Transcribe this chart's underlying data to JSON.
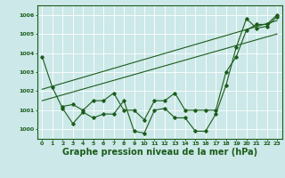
{
  "background_color": "#cce8e8",
  "grid_color": "#ffffff",
  "line_color": "#1a5c1a",
  "xlabel": "Graphe pression niveau de la mer (hPa)",
  "xlabel_fontsize": 7,
  "ylim": [
    999.5,
    1006.5
  ],
  "xlim": [
    -0.5,
    23.5
  ],
  "yticks": [
    1000,
    1001,
    1002,
    1003,
    1004,
    1005,
    1006
  ],
  "xticks": [
    0,
    1,
    2,
    3,
    4,
    5,
    6,
    7,
    8,
    9,
    10,
    11,
    12,
    13,
    14,
    15,
    16,
    17,
    18,
    19,
    20,
    21,
    22,
    23
  ],
  "series1": {
    "x": [
      0,
      1,
      2,
      3,
      4,
      5,
      6,
      7,
      8,
      9,
      10,
      11,
      12,
      13,
      14,
      15,
      16,
      17,
      18,
      19,
      20,
      21,
      22,
      23
    ],
    "y": [
      1003.8,
      1002.2,
      1001.1,
      1000.3,
      1000.9,
      1000.6,
      1000.8,
      1000.8,
      1001.5,
      999.9,
      999.8,
      1001.0,
      1001.1,
      1000.6,
      1000.6,
      999.9,
      999.9,
      1000.8,
      1002.3,
      1004.3,
      1005.8,
      1005.3,
      1005.4,
      1005.9
    ]
  },
  "series2": {
    "x": [
      2,
      3,
      4,
      5,
      6,
      7,
      8,
      9,
      10,
      11,
      12,
      13,
      14,
      15,
      16,
      17,
      18,
      19,
      20,
      21,
      22,
      23
    ],
    "y": [
      1001.2,
      1001.3,
      1001.0,
      1001.5,
      1001.5,
      1001.9,
      1001.0,
      1001.0,
      1000.5,
      1001.5,
      1001.5,
      1001.9,
      1001.0,
      1001.0,
      1001.0,
      1001.0,
      1003.0,
      1003.8,
      1005.2,
      1005.5,
      1005.5,
      1006.0
    ]
  },
  "line3": {
    "x": [
      0,
      23
    ],
    "y": [
      1001.5,
      1005.0
    ]
  },
  "line4": {
    "x": [
      0,
      23
    ],
    "y": [
      1002.1,
      1005.7
    ]
  }
}
